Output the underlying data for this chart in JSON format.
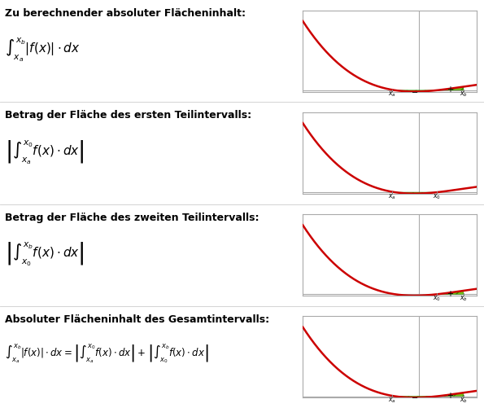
{
  "rows": [
    {
      "bold_text": "Zu berechnender absoluter Flächeninhalt:",
      "formula_lines": [
        "$\\int_{x_a}^{x_b} |f(x)| \\cdot dx$"
      ],
      "show_neg": true,
      "show_pos": true,
      "show_neg_label": true,
      "show_pos_label": true,
      "label_xa": true,
      "label_x0": false,
      "label_xb": true
    },
    {
      "bold_text": "Betrag der Fläche des ersten Teilintervalls:",
      "formula_lines": [
        "$\\left|\\int_{x_a}^{x_0} f(x) \\cdot dx\\right|$"
      ],
      "show_neg": true,
      "show_pos": false,
      "show_neg_label": false,
      "show_pos_label": true,
      "label_xa": true,
      "label_x0": true,
      "label_xb": false
    },
    {
      "bold_text": "Betrag der Fläche des zweiten Teilintervalls:",
      "formula_lines": [
        "$\\left|\\int_{x_0}^{x_b} f(x) \\cdot dx\\right|$"
      ],
      "show_neg": false,
      "show_pos": true,
      "show_neg_label": false,
      "show_pos_label": true,
      "label_xa": false,
      "label_x0": true,
      "label_xb": true
    },
    {
      "bold_text": "Absoluter Flächeninhalt des Gesamtintervalls:",
      "formula_lines": [
        "$\\int_{x_a}^{x_b} |f(x)| \\cdot dx = \\left|\\int_{x_a}^{x_0} f(x) \\cdot dx\\right| + \\left|\\int_{x_0}^{x_b} f(x) \\cdot dx\\right|$"
      ],
      "show_neg": true,
      "show_pos": true,
      "show_neg_label": true,
      "show_pos_label": true,
      "label_xa": true,
      "label_x0": false,
      "label_xb": true
    }
  ],
  "curve_color": "#cc0000",
  "fill_color": "#66bb00",
  "hatch_pattern": "///",
  "axis_color": "#aaaaaa",
  "border_color": "#aaaaaa",
  "text_color": "#000000",
  "bold_fontsize": 9.0,
  "formula_fontsize": 11
}
